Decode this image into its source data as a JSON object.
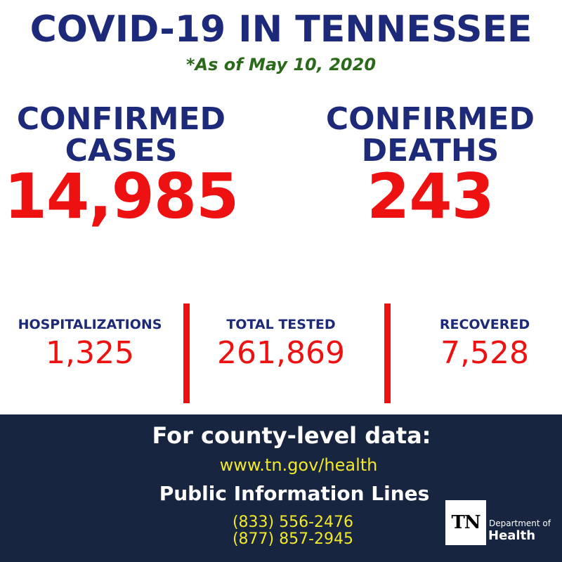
{
  "header": {
    "title": "COVID-19 IN TENNESSEE",
    "date": "*As of May 10, 2020"
  },
  "main_stats": {
    "cases": {
      "label_line1": "CONFIRMED",
      "label_line2": "CASES",
      "value": "14,985"
    },
    "deaths": {
      "label_line1": "CONFIRMED",
      "label_line2": "DEATHS",
      "value": "243"
    }
  },
  "sub_stats": {
    "hospitalizations": {
      "label": "HOSPITALIZATIONS",
      "value": "1,325"
    },
    "tested": {
      "label": "TOTAL TESTED",
      "value": "261,869"
    },
    "recovered": {
      "label": "RECOVERED",
      "value": "7,528"
    }
  },
  "footer": {
    "heading": "For county-level data:",
    "url": "www.tn.gov/health",
    "lines_heading": "Public Information Lines",
    "phones": [
      "(833) 556-2476",
      "(877) 857-2945"
    ],
    "logo": {
      "mark": "TN",
      "department": "Department of",
      "name": "Health"
    }
  },
  "colors": {
    "navy": "#1d2a7a",
    "red": "#ee1111",
    "green": "#2a6a1a",
    "footer_bg": "#172540",
    "yellow": "#f2e82a"
  }
}
